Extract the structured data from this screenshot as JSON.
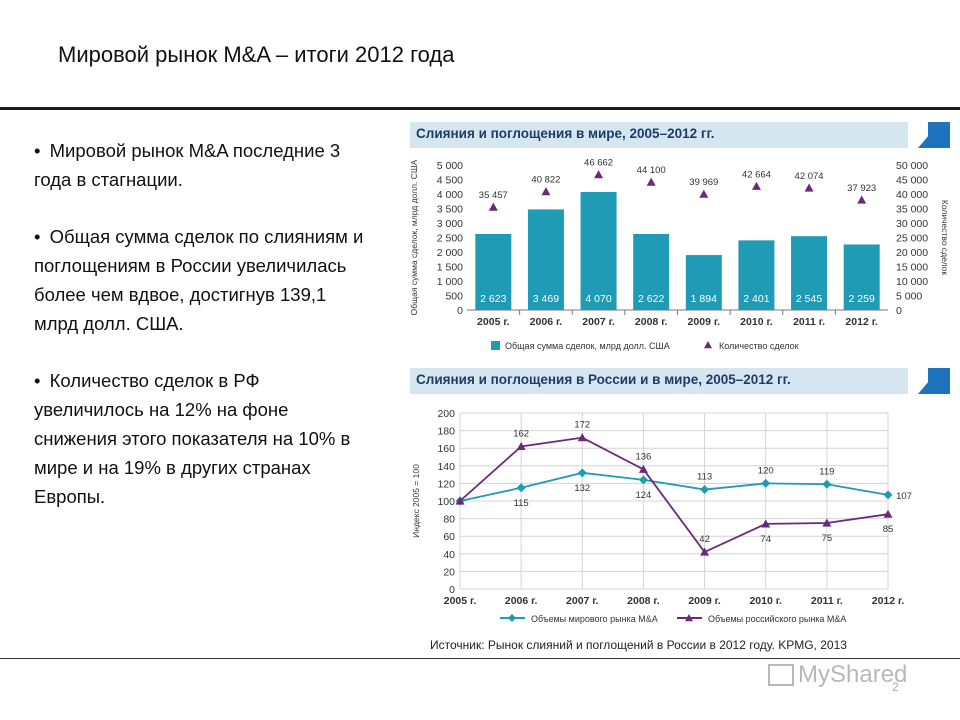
{
  "slide": {
    "title": "Мировой рынок M&A – итоги 2012 года",
    "bullets": [
      "Мировой рынок M&A последние 3 года в стагнации.",
      "Общая сумма сделок по слияниям и поглощениям в России увеличилась более чем вдвое, достигнув 139,1 млрд долл. США.",
      "Количество сделок в РФ увеличилось на 12% на фоне снижения этого показателя на 10% в мире и на 19% в других странах Европы."
    ],
    "bullet_symbol": "•",
    "source": "Источник: Рынок слияний и поглощений в России в 2012 году. KPMG, 2013",
    "watermark": "MyShared",
    "page_number": "2"
  },
  "chart_data": [
    {
      "type": "bar",
      "title": "Слияния и поглощения в мире, 2005–2012 гг.",
      "categories": [
        "2005 г.",
        "2006 г.",
        "2007 г.",
        "2008 г.",
        "2009 г.",
        "2010 г.",
        "2011 г.",
        "2012 г."
      ],
      "series": [
        {
          "name": "Общая сумма сделок, млрд долл. США",
          "type": "bar",
          "axis": "left",
          "values": [
            2623,
            3469,
            4070,
            2622,
            1894,
            2401,
            2545,
            2259
          ],
          "labels": [
            "2 623",
            "3 469",
            "4 070",
            "2 622",
            "1 894",
            "2 401",
            "2 545",
            "2 259"
          ]
        },
        {
          "name": "Количество сделок",
          "type": "marker",
          "axis": "right",
          "values": [
            35457,
            40822,
            46662,
            44100,
            39969,
            42664,
            42074,
            37923
          ],
          "labels": [
            "35 457",
            "40 822",
            "46 662",
            "44 100",
            "39 969",
            "42 664",
            "42 074",
            "37 923"
          ]
        }
      ],
      "ylabel": "Общая сумма сделок, млрд долл. США",
      "y2label": "Количество сделок",
      "ylim": [
        0,
        5000
      ],
      "y2lim": [
        0,
        50000
      ],
      "yticks": [
        "0",
        "500",
        "1 000",
        "1 500",
        "2 000",
        "2 500",
        "3 000",
        "3 500",
        "4 000",
        "4 500",
        "5 000"
      ],
      "y2ticks": [
        "0",
        "5 000",
        "10 000",
        "15 000",
        "20 000",
        "25 000",
        "30 000",
        "35 000",
        "40 000",
        "45 000",
        "50 000"
      ],
      "legend_position": "bottom",
      "colors": {
        "bar": "#1f9bb5",
        "marker": "#6a2a7c",
        "header_bg": "#d6e6f0",
        "header_text": "#1d3c66",
        "header_accent": "#1e73be"
      }
    },
    {
      "type": "line",
      "title": "Слияния и поглощения в России и в мире, 2005–2012 гг.",
      "categories": [
        "2005 г.",
        "2006 г.",
        "2007 г.",
        "2008 г.",
        "2009 г.",
        "2010 г.",
        "2011 г.",
        "2012 г."
      ],
      "series": [
        {
          "name": "Объемы мирового рынка M&A",
          "values": [
            100,
            115,
            132,
            124,
            113,
            120,
            119,
            107
          ],
          "labels": [
            "",
            "115",
            "132",
            "124",
            "113",
            "120",
            "119",
            "107"
          ]
        },
        {
          "name": "Объемы российского рынка M&A",
          "values": [
            100,
            162,
            172,
            136,
            42,
            74,
            75,
            85
          ],
          "labels": [
            "",
            "162",
            "172",
            "136",
            "42",
            "74",
            "75",
            "85"
          ]
        }
      ],
      "ylabel": "Индекс 2005 = 100",
      "ylim": [
        0,
        200
      ],
      "yticks": [
        "0",
        "20",
        "40",
        "60",
        "80",
        "100",
        "120",
        "140",
        "160",
        "180",
        "200"
      ],
      "legend_position": "bottom",
      "grid": true,
      "colors": {
        "world": "#1f9bb5",
        "russia": "#6a2a7c"
      }
    }
  ]
}
